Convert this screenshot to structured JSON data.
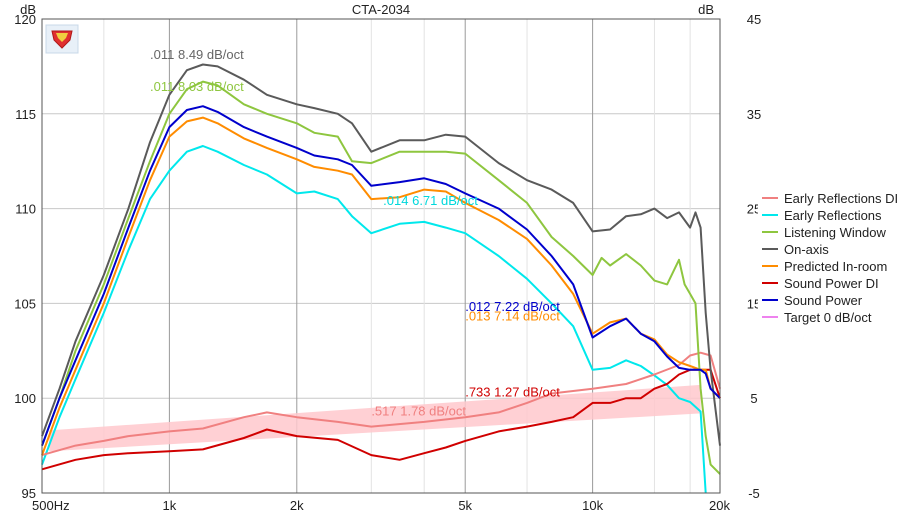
{
  "chart_data": {
    "type": "line",
    "title": "CTA-2034",
    "left_axis": {
      "unit": "dB",
      "ylim": [
        95,
        120
      ],
      "ticks": [
        "95",
        "100",
        "105",
        "110",
        "115",
        "120"
      ]
    },
    "right_axis": {
      "unit": "dB",
      "ylim": [
        -5,
        45
      ],
      "ticks": [
        "-5",
        "5",
        "15",
        "25",
        "35",
        "45"
      ]
    },
    "x_axis": {
      "scale": "log",
      "xlim": [
        500,
        20000
      ],
      "ticks": [
        {
          "value": 500,
          "label": "500Hz"
        },
        {
          "value": 1000,
          "label": "1k"
        },
        {
          "value": 2000,
          "label": "2k"
        },
        {
          "value": 5000,
          "label": "5k"
        },
        {
          "value": 10000,
          "label": "10k"
        },
        {
          "value": 20000,
          "label": "20k"
        }
      ],
      "minor_gridlines": [
        700,
        3000,
        4000,
        7000,
        14000,
        17000
      ]
    },
    "grid": true,
    "legend": {
      "position": "right"
    },
    "target_band": {
      "name": "Target 0 dB/oct",
      "color": "#ffc8cc",
      "points": [
        [
          520,
          98.3,
          97.2
        ],
        [
          18000,
          100.7,
          99.2
        ]
      ]
    },
    "series": [
      {
        "name": "Early Reflections DI",
        "axis": "right",
        "color": "#f08080",
        "x": [
          500,
          600,
          700,
          800,
          1000,
          1200,
          1500,
          1700,
          2000,
          2500,
          3000,
          4000,
          5000,
          6000,
          7000,
          8000,
          10000,
          12000,
          14000,
          16000,
          17000,
          18000,
          19000,
          20000
        ],
        "y": [
          -1,
          0,
          0.5,
          1,
          1.5,
          1.8,
          3,
          3.5,
          3,
          2.5,
          2,
          2.5,
          3,
          3.5,
          4.5,
          5.5,
          6,
          6.5,
          7.5,
          8.5,
          9.5,
          9.8,
          9.5,
          6
        ]
      },
      {
        "name": "Early Reflections",
        "axis": "left",
        "color": "#00e8ec",
        "x": [
          500,
          550,
          600,
          700,
          800,
          900,
          1000,
          1100,
          1200,
          1300,
          1500,
          1700,
          2000,
          2200,
          2500,
          2700,
          3000,
          3500,
          4000,
          4500,
          5000,
          6000,
          7000,
          8000,
          9000,
          10000,
          11000,
          12000,
          13000,
          14000,
          15000,
          16000,
          17000,
          18000,
          18500
        ],
        "y": [
          96.5,
          99,
          101,
          104.5,
          107.8,
          110.5,
          112,
          113,
          113.3,
          113,
          112.3,
          111.8,
          110.8,
          110.9,
          110.5,
          109.6,
          108.7,
          109.2,
          109.3,
          109,
          108.7,
          107.5,
          106.3,
          105,
          103.8,
          101.5,
          101.6,
          102,
          101.7,
          101.2,
          100.7,
          100,
          99.8,
          99.3,
          95
        ]
      },
      {
        "name": "Listening Window",
        "axis": "left",
        "color": "#8ec63f",
        "x": [
          500,
          550,
          600,
          700,
          800,
          900,
          1000,
          1100,
          1200,
          1300,
          1500,
          1700,
          2000,
          2200,
          2500,
          2700,
          3000,
          3500,
          4000,
          4500,
          5000,
          6000,
          7000,
          8000,
          9000,
          10000,
          10500,
          11000,
          12000,
          13000,
          14000,
          15000,
          16000,
          16500,
          17000,
          17500,
          18000,
          18500,
          19000,
          20000
        ],
        "y": [
          97.5,
          100,
          102.5,
          106,
          109.5,
          112.5,
          115,
          116.3,
          116.7,
          116.5,
          115.5,
          115,
          114.5,
          114,
          113.8,
          112.5,
          112.4,
          113,
          113,
          113,
          112.9,
          111.5,
          110.3,
          108.5,
          107.5,
          106.5,
          107.4,
          107,
          107.6,
          107,
          106.2,
          106,
          107.3,
          106,
          105.5,
          105,
          100.5,
          98,
          96.5,
          96
        ]
      },
      {
        "name": "On-axis",
        "axis": "left",
        "color": "#5a5a5a",
        "x": [
          500,
          550,
          600,
          700,
          800,
          900,
          1000,
          1100,
          1200,
          1300,
          1500,
          1700,
          2000,
          2200,
          2500,
          2700,
          3000,
          3500,
          4000,
          4500,
          5000,
          6000,
          7000,
          8000,
          9000,
          10000,
          11000,
          12000,
          13000,
          14000,
          15000,
          16000,
          17000,
          17500,
          18000,
          18500,
          19000,
          20000
        ],
        "y": [
          98,
          100.5,
          103,
          106.5,
          110,
          113.5,
          116,
          117.3,
          117.6,
          117.5,
          116.8,
          116,
          115.5,
          115.3,
          115,
          114.5,
          113,
          113.6,
          113.6,
          113.9,
          113.8,
          112.4,
          111.5,
          111,
          110.3,
          108.8,
          108.9,
          109.6,
          109.7,
          110,
          109.5,
          109.8,
          109,
          109.8,
          109,
          104.5,
          101.5,
          97.5
        ]
      },
      {
        "name": "Predicted In-room",
        "axis": "left",
        "color": "#ff8c00",
        "x": [
          500,
          550,
          600,
          700,
          800,
          900,
          1000,
          1100,
          1200,
          1300,
          1500,
          1700,
          2000,
          2200,
          2500,
          2700,
          3000,
          3500,
          4000,
          4500,
          5000,
          6000,
          7000,
          8000,
          9000,
          10000,
          11000,
          12000,
          13000,
          14000,
          15000,
          16000,
          17000,
          18000,
          18500,
          19000,
          20000
        ],
        "y": [
          97,
          99.5,
          101.5,
          105,
          108.5,
          111.5,
          113.8,
          114.6,
          114.8,
          114.5,
          113.7,
          113.2,
          112.6,
          112.2,
          112,
          111.8,
          110.5,
          110.6,
          111,
          110.9,
          110.3,
          109.4,
          108.4,
          107,
          105.5,
          103.4,
          104,
          104.2,
          103.4,
          103.1,
          102.3,
          101.9,
          101.7,
          101.5,
          101.5,
          100.5,
          100
        ]
      },
      {
        "name": "Sound Power DI",
        "axis": "right",
        "color": "#d00000",
        "x": [
          500,
          600,
          700,
          800,
          1000,
          1200,
          1500,
          1700,
          2000,
          2500,
          3000,
          3500,
          4000,
          4500,
          5000,
          6000,
          7000,
          8000,
          9000,
          10000,
          11000,
          12000,
          13000,
          14000,
          15000,
          16000,
          17000,
          18000,
          19000,
          20000
        ],
        "y": [
          -2.5,
          -1.5,
          -1,
          -0.8,
          -0.6,
          -0.4,
          0.8,
          1.7,
          1,
          0.6,
          -1,
          -1.5,
          -0.8,
          -0.2,
          0.5,
          1.5,
          2,
          2.5,
          3,
          4.5,
          4.5,
          5,
          5,
          6,
          6.5,
          7.5,
          8,
          8,
          8,
          5
        ]
      },
      {
        "name": "Sound Power",
        "axis": "left",
        "color": "#0000cc",
        "x": [
          500,
          550,
          600,
          700,
          800,
          900,
          1000,
          1100,
          1200,
          1300,
          1500,
          1700,
          2000,
          2200,
          2500,
          2700,
          3000,
          3500,
          4000,
          4500,
          5000,
          6000,
          7000,
          8000,
          9000,
          10000,
          11000,
          12000,
          13000,
          14000,
          15000,
          16000,
          17000,
          18000,
          18500,
          19000,
          20000
        ],
        "y": [
          97.5,
          100,
          102,
          105.5,
          109,
          112,
          114.3,
          115.2,
          115.4,
          115.1,
          114.3,
          113.8,
          113.2,
          112.8,
          112.6,
          112.3,
          111.2,
          111.4,
          111.6,
          111.3,
          110.8,
          110,
          108.9,
          107.5,
          106,
          103.2,
          103.8,
          104.2,
          103.4,
          103,
          102.2,
          101.6,
          101.5,
          101.5,
          101.3,
          100.5,
          100
        ]
      },
      {
        "name": "Target 0 dB/oct",
        "axis": "left",
        "color": "#ee82ee",
        "x": [],
        "y": []
      }
    ],
    "annotations": [
      {
        "text": ".011  8.49 dB/oct",
        "color": "#666666",
        "at": [
          900,
          117.9
        ]
      },
      {
        "text": ".011  8.03 dB/oct",
        "color": "#8ec63f",
        "at": [
          900,
          116.2
        ]
      },
      {
        "text": ".014  6.71 dB/oct",
        "color": "#00d8dc",
        "at": [
          3200,
          110.2
        ]
      },
      {
        "text": ".012  7.22 dB/oct",
        "color": "#0000cc",
        "at": [
          5000,
          104.6
        ]
      },
      {
        "text": ".013  7.14 dB/oct",
        "color": "#ff8c00",
        "at": [
          5000,
          104.1
        ]
      },
      {
        "text": ".733  1.27 dB/oct",
        "color": "#d00000",
        "at": [
          5000,
          100.1
        ]
      },
      {
        "text": ".517  1.78 dB/oct",
        "color": "#f08080",
        "at": [
          3000,
          99.1
        ]
      }
    ]
  },
  "logo": {
    "name": "shield-logo",
    "color": "#e03030"
  }
}
